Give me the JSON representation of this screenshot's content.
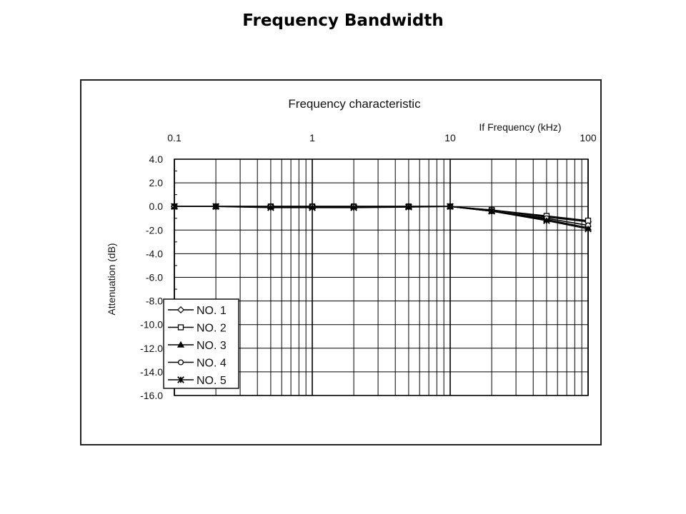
{
  "slide_title": "Frequency Bandwidth",
  "chart_data": {
    "type": "line",
    "title": "Frequency characteristic",
    "xlabel": "If Frequency (kHz)",
    "ylabel": "Attenuation (dB)",
    "x_scale": "log",
    "xlim": [
      0.1,
      100
    ],
    "ylim": [
      -16,
      4
    ],
    "x_tick_labels": [
      "0.1",
      "1",
      "10",
      "100"
    ],
    "y_tick_labels": [
      "4.0",
      "2.0",
      "0.0",
      "-2.0",
      "-4.0",
      "-6.0",
      "-8.0",
      "-10.0",
      "-12.0",
      "-14.0",
      "-16.0"
    ],
    "grid": true,
    "legend_position": "bottom-left",
    "x": [
      0.1,
      0.2,
      0.5,
      1,
      2,
      5,
      10,
      20,
      50,
      100
    ],
    "series": [
      {
        "name": "NO. 1",
        "marker": "diamond",
        "values": [
          0,
          0,
          0,
          0,
          0,
          0,
          0,
          -0.3,
          -0.9,
          -1.3
        ]
      },
      {
        "name": "NO. 2",
        "marker": "square",
        "values": [
          0,
          0,
          0,
          0,
          0,
          0,
          0,
          -0.3,
          -0.8,
          -1.2
        ]
      },
      {
        "name": "NO. 3",
        "marker": "triangle",
        "values": [
          0,
          0,
          0,
          0,
          0,
          0,
          0,
          -0.4,
          -1.1,
          -1.8
        ]
      },
      {
        "name": "NO. 4",
        "marker": "circle",
        "values": [
          0,
          0,
          0,
          0,
          0,
          0,
          0,
          -0.4,
          -1.0,
          -1.6
        ]
      },
      {
        "name": "NO. 5",
        "marker": "star",
        "values": [
          0,
          0,
          -0.1,
          -0.1,
          -0.1,
          -0.05,
          0,
          -0.4,
          -1.2,
          -1.9
        ]
      }
    ]
  }
}
